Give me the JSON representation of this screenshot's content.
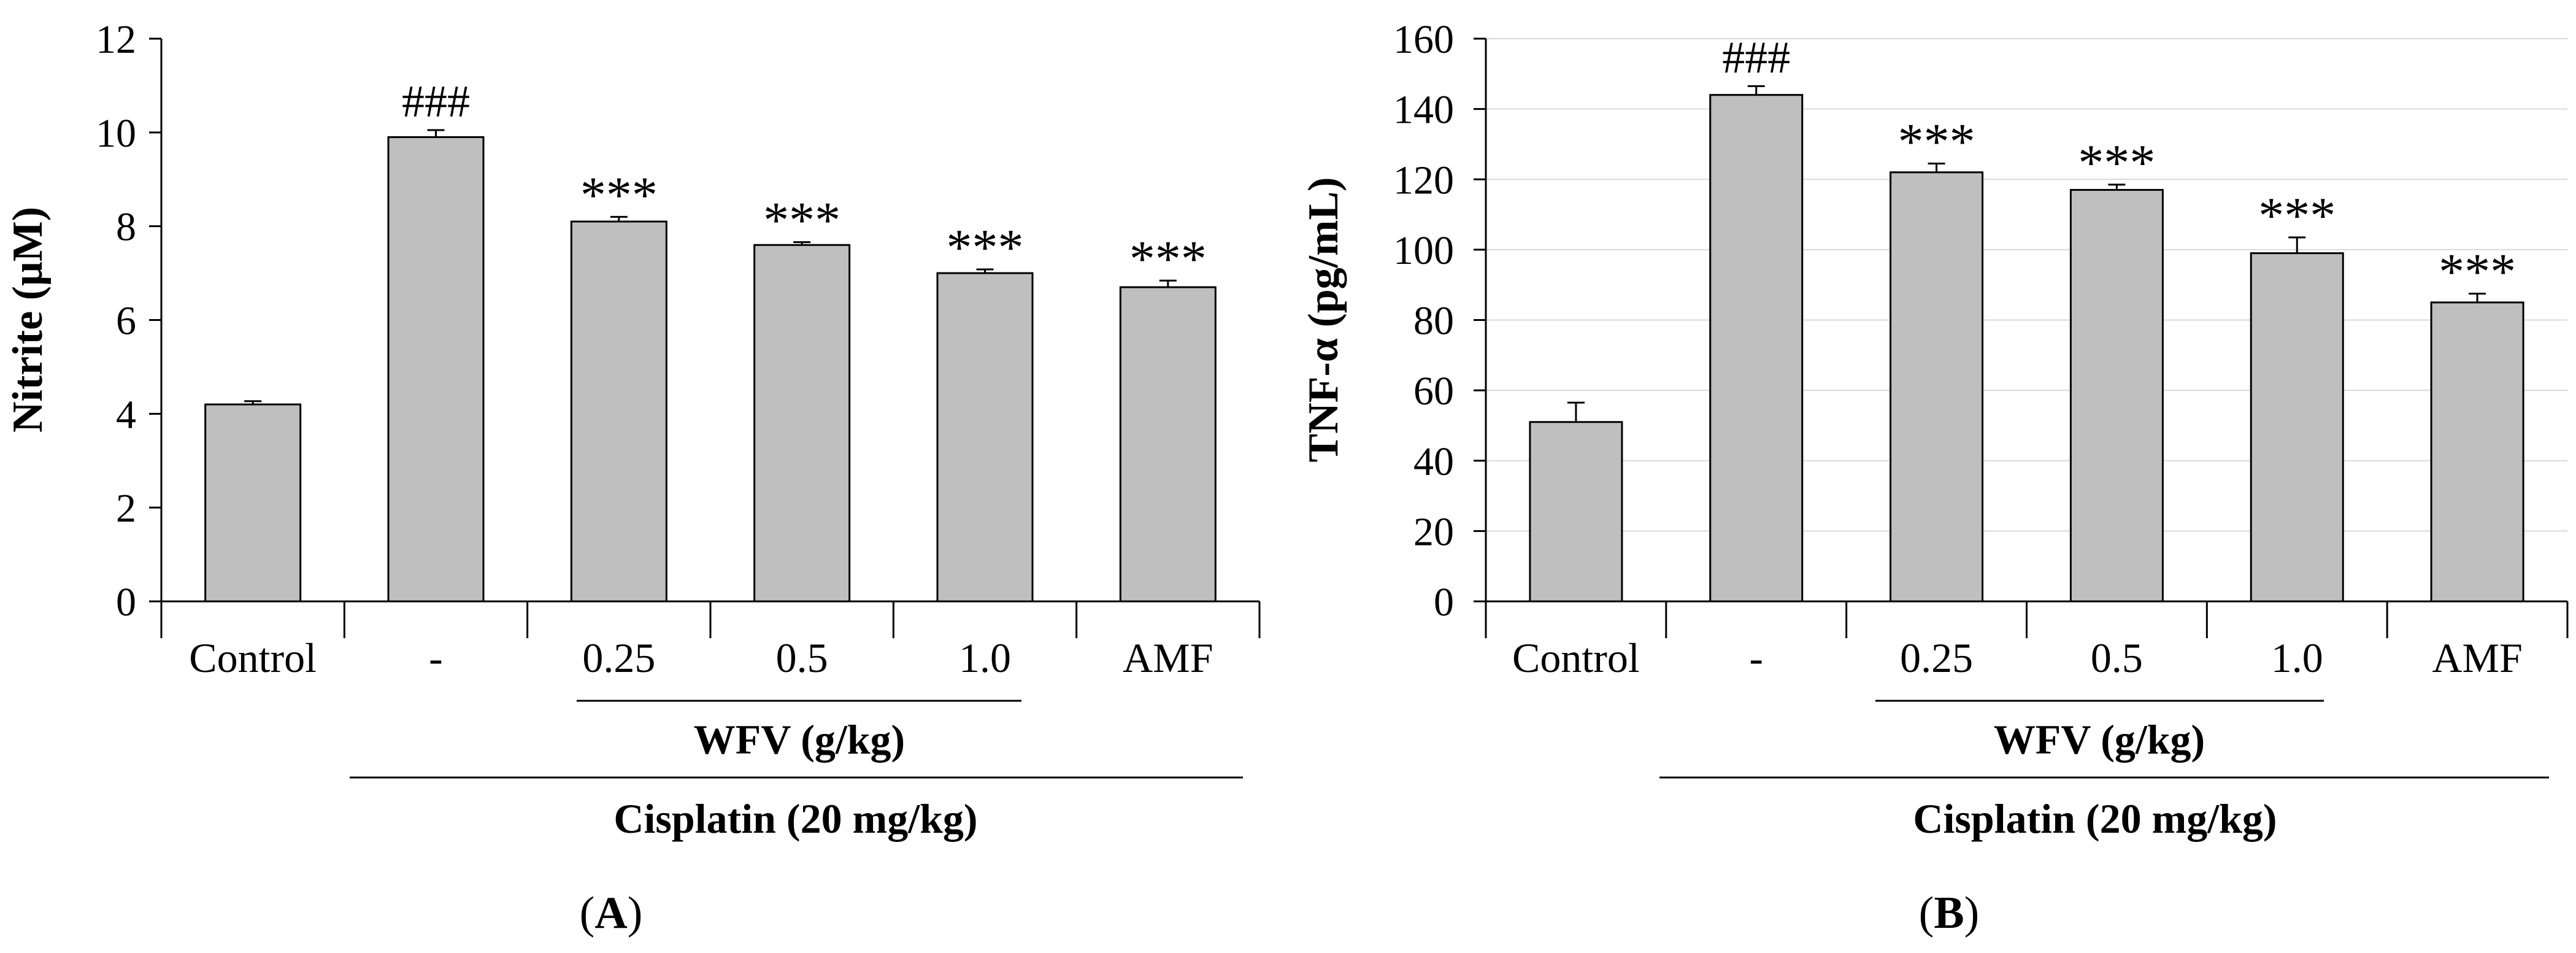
{
  "colors": {
    "bar_fill": "#bfbfbf",
    "bar_stroke": "#000000",
    "axis": "#000000",
    "gridline": "#d9d9d9",
    "text": "#000000"
  },
  "panels": [
    {
      "panel_label": "A",
      "group_label": "WFV (g/kg)",
      "treatment_label": "Cisplatin (20 mg/kg)"
    },
    {
      "panel_label": "B",
      "group_label": "WFV (g/kg)",
      "treatment_label": "Cisplatin (20 mg/kg)"
    }
  ],
  "chart_data": [
    {
      "type": "bar",
      "panel": "A",
      "title": "",
      "xlabel": "",
      "ylabel": "Nitrite (μM)",
      "categories": [
        "Control",
        "-",
        "0.25",
        "0.5",
        "1.0",
        "AMF"
      ],
      "values": [
        4.2,
        9.9,
        8.1,
        7.6,
        7.0,
        6.7
      ],
      "errors": [
        0.07,
        0.15,
        0.1,
        0.06,
        0.08,
        0.14
      ],
      "annotations": [
        "",
        "###",
        "***",
        "***",
        "***",
        "***"
      ],
      "ylim": [
        0,
        12
      ],
      "yticks": [
        0,
        2,
        4,
        6,
        8,
        10,
        12
      ],
      "grid": false
    },
    {
      "type": "bar",
      "panel": "B",
      "title": "",
      "xlabel": "",
      "ylabel": "TNF-α (pg/mL)",
      "categories": [
        "Control",
        "-",
        "0.25",
        "0.5",
        "1.0",
        "AMF"
      ],
      "values": [
        51,
        144,
        122,
        117,
        99,
        85
      ],
      "errors": [
        5.5,
        2.5,
        2.5,
        1.5,
        4.5,
        2.5
      ],
      "annotations": [
        "",
        "###",
        "***",
        "***",
        "***",
        "***"
      ],
      "ylim": [
        0,
        160
      ],
      "yticks": [
        0,
        20,
        40,
        60,
        80,
        100,
        120,
        140,
        160
      ],
      "grid": true
    }
  ]
}
